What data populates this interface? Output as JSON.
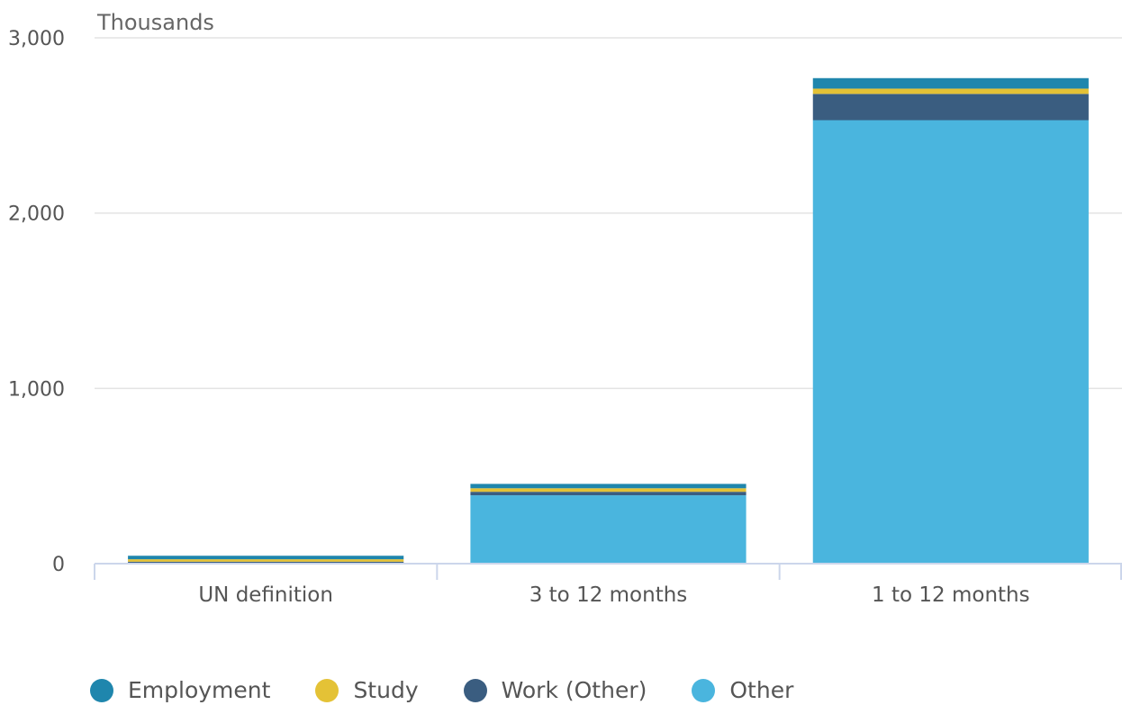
{
  "chart_data": {
    "type": "bar",
    "stacked": true,
    "ylabel": "Thousands",
    "ylim": [
      0,
      3000
    ],
    "yticks": [
      0,
      1000,
      2000,
      3000
    ],
    "ytick_labels": [
      "0",
      "1,000",
      "2,000",
      "3,000"
    ],
    "categories": [
      "UN definition",
      "3 to 12 months",
      "1 to 12 months"
    ],
    "series": [
      {
        "name": "Other",
        "color": "#4ab5de",
        "values": [
          5,
          390,
          2530
        ]
      },
      {
        "name": "Work (Other)",
        "color": "#3a5d80",
        "values": [
          6,
          20,
          150
        ]
      },
      {
        "name": "Study",
        "color": "#e4c236",
        "values": [
          14,
          20,
          30
        ]
      },
      {
        "name": "Employment",
        "color": "#1f86ad",
        "values": [
          20,
          25,
          60
        ]
      }
    ],
    "legend_order": [
      "Employment",
      "Study",
      "Work (Other)",
      "Other"
    ],
    "grid": true,
    "legend_position": "bottom-left"
  }
}
